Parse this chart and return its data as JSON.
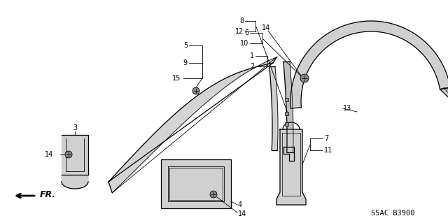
{
  "bg_color": "#ffffff",
  "diagram_code": "S5AC B3900",
  "fr_label": "FR.",
  "label_fs": 7.0,
  "lw_part": 0.9,
  "lw_leader": 0.6
}
